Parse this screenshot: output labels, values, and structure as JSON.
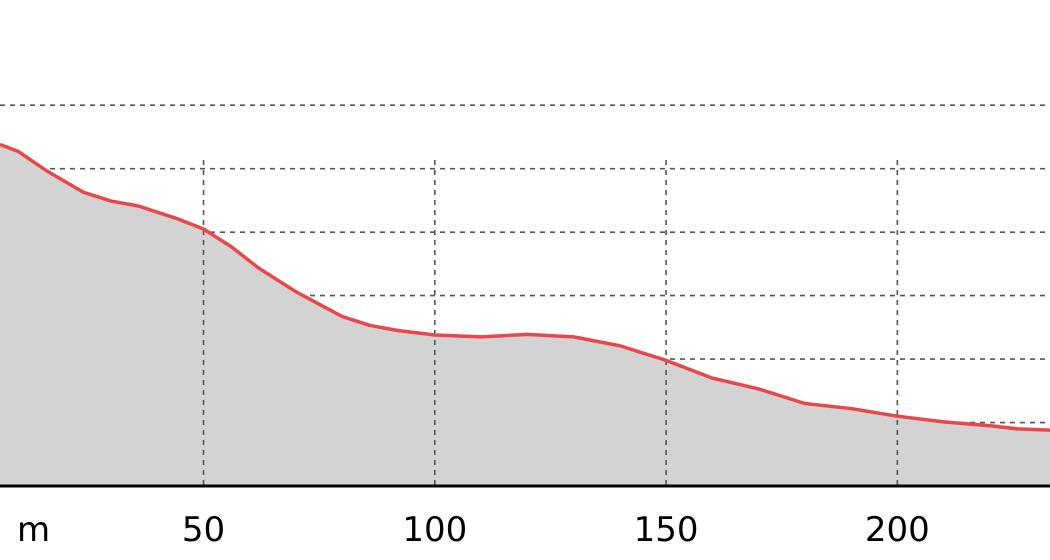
{
  "chart_data": {
    "type": "area",
    "title": "",
    "xlabel": "",
    "ylabel": "",
    "x_unit": "m",
    "x_ticks": [
      50,
      100,
      150,
      200
    ],
    "xlim": [
      6,
      233
    ],
    "y_gridlines": [
      1,
      2,
      3,
      4,
      5,
      6
    ],
    "ylim": [
      0,
      6.35
    ],
    "grid": true,
    "series": [
      {
        "x": [
          6,
          10,
          16,
          24,
          30,
          36,
          44,
          50,
          56,
          62,
          70,
          80,
          86,
          92,
          100,
          110,
          120,
          130,
          140,
          150,
          160,
          170,
          180,
          190,
          200,
          210,
          220,
          226,
          233
        ],
        "y": [
          5.38,
          5.27,
          4.97,
          4.63,
          4.49,
          4.41,
          4.22,
          4.05,
          3.77,
          3.43,
          3.06,
          2.67,
          2.53,
          2.45,
          2.38,
          2.35,
          2.39,
          2.35,
          2.21,
          1.98,
          1.7,
          1.53,
          1.3,
          1.22,
          1.1,
          1.01,
          0.95,
          0.9,
          0.88
        ]
      }
    ],
    "colors": {
      "line": "#e8474c",
      "fill": "#d3d3d3",
      "grid": "#555555",
      "axis": "#000000"
    }
  }
}
